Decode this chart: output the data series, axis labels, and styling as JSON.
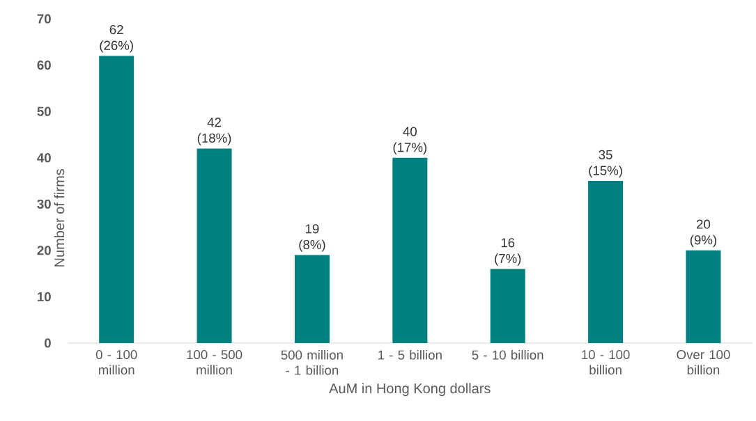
{
  "chart_data": {
    "type": "bar",
    "categories": [
      "0 - 100 million",
      "100 - 500 million",
      "500 million - 1 billion",
      "1 - 5 billion",
      "5 - 10 billion",
      "10 - 100 billion",
      "Over 100 billion"
    ],
    "values": [
      62,
      42,
      19,
      40,
      16,
      35,
      20
    ],
    "value_labels": [
      "62 (26%)",
      "42 (18%)",
      "19 (8%)",
      "40 (17%)",
      "16 (7%)",
      "35 (15%)",
      "20 (9%)"
    ],
    "color": "#008080",
    "xlabel": "AuM in Hong Kong dollars",
    "ylabel": "Number of firms",
    "ylim": [
      0,
      70
    ],
    "yticks": [
      0,
      10,
      20,
      30,
      40,
      50,
      60,
      70
    ]
  }
}
